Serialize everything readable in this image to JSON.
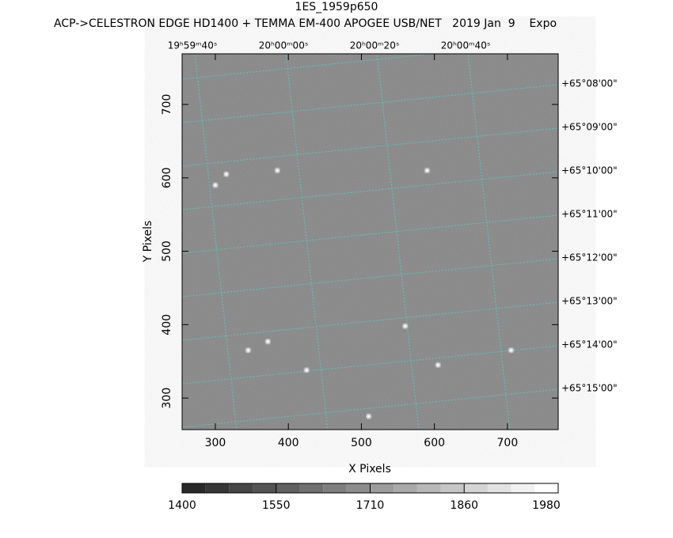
{
  "chart_data": {
    "type": "image",
    "title": "1ES_1959p650",
    "subtitle": "ACP->CELESTRON EDGE HD1400 + TEMMA EM-400 APOGEE USB/NET   2019 Jan  9    Expo",
    "x_label": "X Pixels",
    "y_label": "Y Pixels",
    "xlim": [
      254.5,
      769.5
    ],
    "ylim": [
      257,
      769
    ],
    "xticks": [
      300,
      400,
      500,
      600,
      700
    ],
    "yticks": [
      300,
      400,
      500,
      600,
      700
    ],
    "ra_labels": [
      "19ʰ59ᵐ40ˢ",
      "20ʰ00ᵐ00ˢ",
      "20ʰ00ᵐ20ˢ",
      "20ʰ00ᵐ40ˢ"
    ],
    "dec_labels": [
      "+65°08'00\"",
      "+65°09'00\"",
      "+65°10'00\"",
      "+65°11'00\"",
      "+65°12'00\"",
      "+65°13'00\"",
      "+65°14'00\"",
      "+65°15'00\""
    ],
    "stars": {
      "x": [
        300,
        345,
        590,
        315,
        385,
        510,
        560,
        425,
        372,
        705,
        605
      ],
      "y": [
        590,
        365,
        610,
        605,
        610,
        275,
        398,
        338,
        377,
        365,
        345
      ]
    },
    "colorbar_ticks": [
      1400,
      1550,
      1710,
      1860,
      1980
    ]
  }
}
